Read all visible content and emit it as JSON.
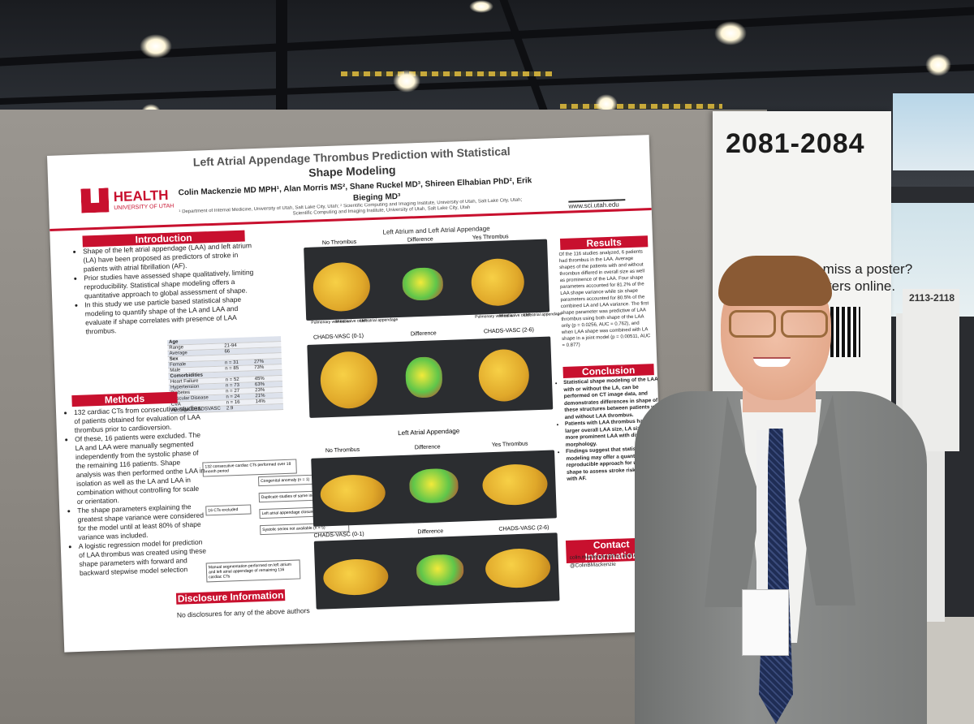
{
  "sign": {
    "number": "2081-2084",
    "line1": "ou miss a poster?",
    "line2": "osters online.",
    "secondary": "2113-2118"
  },
  "poster": {
    "title_line1": "Left Atrial Appendage Thrombus Prediction with Statistical",
    "title_line2": "Shape Modeling",
    "authors": "Colin Mackenzie MD MPH¹, Alan Morris MS², Shane Ruckel MD³, Shireen Elhabian PhD², Erik",
    "authors2": "Bieging MD³",
    "affiliations": "¹ Department of Internal Medicine, University of Utah, Salt Lake City, Utah; ² Scientific Computing and Imaging Institute, University of Utah, Salt Lake City, Utah;",
    "affiliations2": "Scientific Computing and Imaging Institute, University of Utah, Salt Lake City, Utah",
    "logo_left": "HEALTH",
    "logo_left_sub": "UNIVERSITY OF UTAH",
    "logo_right": "www.sci.utah.edu",
    "intro_header": "Introduction",
    "intro_items": [
      "Shape of the left atrial appendage (LAA) and left atrium (LA) have been proposed as predictors of stroke in patients with atrial fibrillation (AF).",
      "Prior studies have assessed shape qualitatively, limiting reproducibility. Statistical shape modeling offers a quantitative approach to global assessment of shape.",
      "In this study we use particle based statistical shape modeling to quantify shape of the LA and LAA and evaluate if shape correlates with presence of LAA thrombus."
    ],
    "table": {
      "rows": [
        [
          "Age",
          "",
          ""
        ],
        [
          "Range",
          "21-94",
          ""
        ],
        [
          "Average",
          "66",
          ""
        ],
        [
          "Sex",
          "",
          ""
        ],
        [
          "Female",
          "n = 31",
          "27%"
        ],
        [
          "Male",
          "n = 85",
          "73%"
        ],
        [
          "Comorbidities",
          "",
          ""
        ],
        [
          "Heart Failure",
          "n = 52",
          "45%"
        ],
        [
          "Hypertension",
          "n = 73",
          "63%"
        ],
        [
          "Diabetes",
          "n = 27",
          "23%"
        ],
        [
          "Vascular Disease",
          "n = 24",
          "21%"
        ],
        [
          "CVA",
          "n = 16",
          "14%"
        ],
        [
          "Average CHADSVASC",
          "2.9",
          ""
        ]
      ]
    },
    "methods_header": "Methods",
    "methods_items": [
      "132 cardiac CTs from consecutive studies of patients obtained for evaluation of LAA thrombus prior to cardioversion.",
      "Of these, 16 patients were excluded. The LA and LAA were manually segmented independently from the systolic phase of the remaining 116 patients. Shape analysis was then performed onthe LAA in isolation as well as the LA and LAA in combination without controlling for scale or orientation.",
      "The shape parameters explaining the greatest shape variance were considered for the model until at least 80% of shape variance was included.",
      "A logistic regression model for prediction of LAA thrombus was created using these shape parameters with forward and backward stepwise model selection"
    ],
    "flow": {
      "start": "132 consecutive cardiac CTs performed over 18 month period",
      "excluded": "16 CTs excluded",
      "reasons": [
        "Congenital anomaly (n = 1)",
        "Duplicate studies of same individual (n = 4)",
        "Left atrial appendage closure device (n = 6)",
        "Systolic series not available (n = 5)"
      ],
      "end": "Manual segmentation performed on left atrium and left atrial appendage of remaining 116 cardiac CTs"
    },
    "disclosure_header": "Disclosure Information",
    "disclosure_text": "No disclosures for any of the above authors",
    "center": {
      "section1_title": "Left Atrium and Left Atrial Appendage",
      "s1_labels": [
        "No Thrombus",
        "Difference",
        "Yes Thrombus"
      ],
      "s1_annot": [
        "Pulmonary vein ostia",
        "Mitral valve orifice",
        "Left atrial appendage",
        "Pulmonary vein ostia",
        "Mitral valve orifice",
        "Left atrial appendage"
      ],
      "s2_labels": [
        "CHADS-VASC (0-1)",
        "Difference",
        "CHADS-VASC (2-6)"
      ],
      "section2_title": "Left Atrial Appendage",
      "s3_labels": [
        "No Thrombus",
        "Difference",
        "Yes Thrombus"
      ],
      "s4_labels": [
        "CHADS-VASC (0-1)",
        "Difference",
        "CHADS-VASC (2-6)"
      ]
    },
    "results_header": "Results",
    "results_text": "Of the 116 studies analyzed, 6 patients had thrombus in the LAA. Average shapes of the patients with and without thrombus differed in overall size as well as prominence of the LAA. Four shape parameters accounted for 81.2% of the LAA shape variance while six shape parameters accounted for 80.5% of the combined LA and LAA variance. The first shape parameter was predictive of LAA thrombus using both shape of the LAA only (p = 0.0256, AUC = 0.762), and when LAA shape was combined with LA shape in a joint model (p = 0.00511, AUC = 0.877)",
    "conclusion_header": "Conclusion",
    "conclusion_items": [
      "Statistical shape modeling of the LAA, with or without the LA, can be performed on CT image data, and demonstrates differences in shape of these structures between patients with and without LAA thrombus.",
      "Patients with LAA thrombus had a larger overall LAA size, LA size, and a more prominent LAA with distinctive morphology.",
      "Findings suggest that statistical shape modeling may offer a quantitative and reproducible approach for using LAA shape to assess stroke risk in patients with AF."
    ],
    "contact_header": "Contact Information",
    "contact_email": "colin.mackenzie@hsc.utah.edu",
    "contact_handle": "@ColinBMackenzie"
  },
  "colors": {
    "accent_red": "#c8102e",
    "suit": "#7c7e7d",
    "tie": "#1f2d55"
  }
}
